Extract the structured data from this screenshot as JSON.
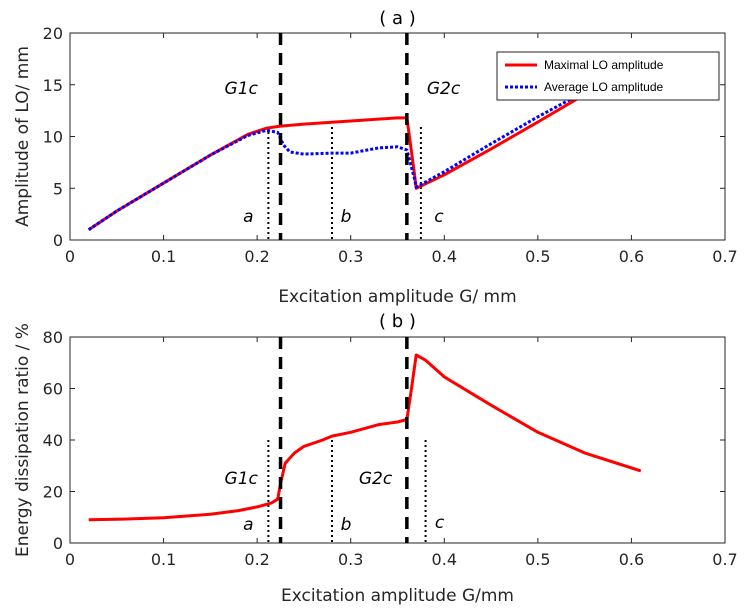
{
  "chart_data": [
    {
      "type": "line",
      "title": "( a )",
      "xlabel": "Excitation amplitude G/ mm",
      "ylabel": "Amplitude of LO/ mm",
      "xlim": [
        0,
        0.7
      ],
      "ylim": [
        0,
        20
      ],
      "xticks": [
        0,
        0.1,
        0.2,
        0.3,
        0.4,
        0.5,
        0.6,
        0.7
      ],
      "xtick_labels": [
        "0",
        "0.1",
        "0.2",
        "0.3",
        "0.4",
        "0.5",
        "0.6",
        "0.7"
      ],
      "yticks": [
        0,
        5,
        10,
        15,
        20
      ],
      "ytick_labels": [
        "0",
        "5",
        "10",
        "15",
        "20"
      ],
      "grid": false,
      "legend": {
        "placement": "top-right"
      },
      "series": [
        {
          "name": "Maximal LO amplitude",
          "color": "#ff0000",
          "style": "solid",
          "x": [
            0.02,
            0.05,
            0.1,
            0.15,
            0.19,
            0.21,
            0.225,
            0.25,
            0.3,
            0.35,
            0.36,
            0.368,
            0.37,
            0.4,
            0.45,
            0.5,
            0.545
          ],
          "y": [
            1.0,
            2.8,
            5.5,
            8.2,
            10.2,
            10.8,
            11.0,
            11.2,
            11.5,
            11.8,
            11.8,
            6.5,
            5.0,
            6.3,
            8.8,
            11.4,
            13.8
          ]
        },
        {
          "name": "Average LO amplitude",
          "color": "#0000ff",
          "style": "dotted",
          "x": [
            0.02,
            0.05,
            0.1,
            0.15,
            0.19,
            0.21,
            0.222,
            0.228,
            0.235,
            0.25,
            0.28,
            0.3,
            0.33,
            0.35,
            0.36,
            0.368,
            0.37,
            0.4,
            0.45,
            0.5,
            0.545
          ],
          "y": [
            1.0,
            2.8,
            5.5,
            8.2,
            10.1,
            10.6,
            10.4,
            9.2,
            8.5,
            8.3,
            8.4,
            8.4,
            8.9,
            9.0,
            8.7,
            6.0,
            5.1,
            6.6,
            9.3,
            11.9,
            14.1
          ]
        }
      ],
      "thresholds": [
        {
          "x": 0.225,
          "label": "G1c"
        },
        {
          "x": 0.36,
          "label": "G2c"
        }
      ],
      "markers": [
        {
          "x": 0.212,
          "label": "a"
        },
        {
          "x": 0.28,
          "label": "b"
        },
        {
          "x": 0.375,
          "label": "c"
        }
      ]
    },
    {
      "type": "line",
      "title": "( b )",
      "xlabel": "Excitation amplitude G/mm",
      "ylabel": "Energy dissipation ratio / %",
      "xlim": [
        0,
        0.7
      ],
      "ylim": [
        0,
        80
      ],
      "xticks": [
        0,
        0.1,
        0.2,
        0.3,
        0.4,
        0.5,
        0.6,
        0.7
      ],
      "xtick_labels": [
        "0",
        "0.1",
        "0.2",
        "0.3",
        "0.4",
        "0.5",
        "0.6",
        "0.7"
      ],
      "yticks": [
        0,
        20,
        40,
        60,
        80
      ],
      "ytick_labels": [
        "0",
        "20",
        "40",
        "60",
        "80"
      ],
      "grid": false,
      "series": [
        {
          "color": "#ff0000",
          "style": "solid",
          "x": [
            0.02,
            0.05,
            0.1,
            0.15,
            0.18,
            0.2,
            0.215,
            0.222,
            0.225,
            0.23,
            0.24,
            0.25,
            0.27,
            0.28,
            0.3,
            0.33,
            0.35,
            0.36,
            0.365,
            0.37,
            0.38,
            0.4,
            0.45,
            0.5,
            0.55,
            0.61
          ],
          "y": [
            9.0,
            9.2,
            9.8,
            11.2,
            12.6,
            14.0,
            15.5,
            17.0,
            23.0,
            31.0,
            35.0,
            37.5,
            40.0,
            41.5,
            43.0,
            46.0,
            47.0,
            48.0,
            60.0,
            73.0,
            71.0,
            64.5,
            53.5,
            43.0,
            35.0,
            28.0
          ]
        }
      ],
      "thresholds": [
        {
          "x": 0.225,
          "label": "G1c"
        },
        {
          "x": 0.36,
          "label": "G2c"
        }
      ],
      "markers": [
        {
          "x": 0.212,
          "label": "a"
        },
        {
          "x": 0.28,
          "label": "b"
        },
        {
          "x": 0.38,
          "label": "c"
        }
      ]
    }
  ]
}
